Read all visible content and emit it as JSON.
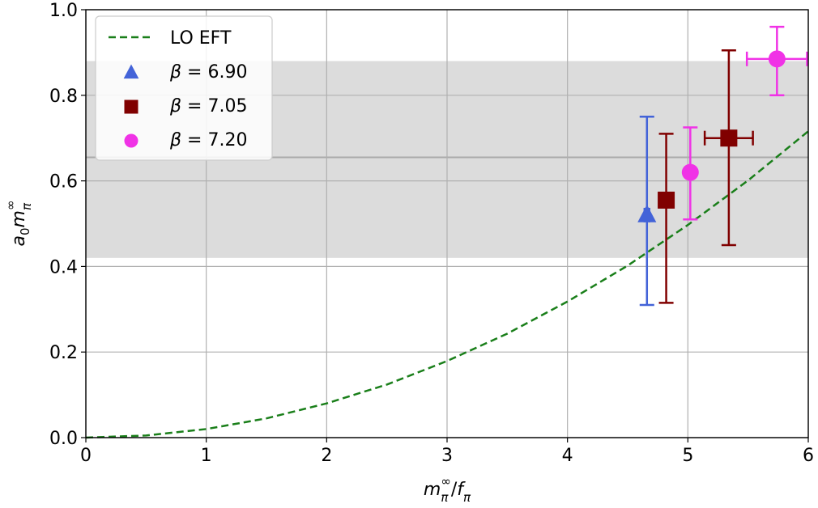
{
  "chart_data": {
    "type": "scatter",
    "xlim": [
      0,
      6
    ],
    "ylim": [
      0,
      1.0
    ],
    "xticks": [
      "0",
      "1",
      "2",
      "3",
      "4",
      "5",
      "6"
    ],
    "yticks": [
      "0.0",
      "0.2",
      "0.4",
      "0.6",
      "0.8",
      "1.0"
    ],
    "grid": true,
    "legend_position": "top-left",
    "band": {
      "low": 0.42,
      "high": 0.88,
      "center": 0.655,
      "color": "#dcdcdc"
    },
    "curve": {
      "name": "LO EFT",
      "style": "dashed",
      "color": "#1a7f1a",
      "x": [
        0,
        0.5,
        1,
        1.5,
        2,
        2.5,
        3,
        3.5,
        4,
        4.5,
        5,
        5.5,
        6
      ],
      "y": [
        0,
        0.005,
        0.02,
        0.045,
        0.08,
        0.124,
        0.179,
        0.243,
        0.318,
        0.402,
        0.497,
        0.601,
        0.716
      ]
    },
    "series": [
      {
        "name": "β = 6.90",
        "marker": "triangle",
        "color": "#4363d8",
        "points": [
          {
            "x": 4.66,
            "xerr": 0.02,
            "y": 0.52,
            "yerr_low": 0.21,
            "yerr_high": 0.23
          }
        ]
      },
      {
        "name": "β = 7.05",
        "marker": "square",
        "color": "#800000",
        "points": [
          {
            "x": 4.82,
            "xerr": 0.06,
            "y": 0.555,
            "yerr_low": 0.24,
            "yerr_high": 0.155
          },
          {
            "x": 5.34,
            "xerr": 0.2,
            "y": 0.7,
            "yerr_low": 0.25,
            "yerr_high": 0.205
          }
        ]
      },
      {
        "name": "β = 7.20",
        "marker": "circle",
        "color": "#f032e6",
        "points": [
          {
            "x": 5.02,
            "xerr": 0.02,
            "y": 0.62,
            "yerr_low": 0.11,
            "yerr_high": 0.105
          },
          {
            "x": 5.74,
            "xerr": 0.25,
            "y": 0.885,
            "yerr_low": 0.085,
            "yerr_high": 0.075
          }
        ]
      }
    ],
    "legend": [
      {
        "label_sym": "LO EFT",
        "label_val": ""
      },
      {
        "label_sym": "β",
        "label_val": " = 6.90"
      },
      {
        "label_sym": "β",
        "label_val": " = 7.05"
      },
      {
        "label_sym": "β",
        "label_val": " = 7.20"
      }
    ]
  }
}
